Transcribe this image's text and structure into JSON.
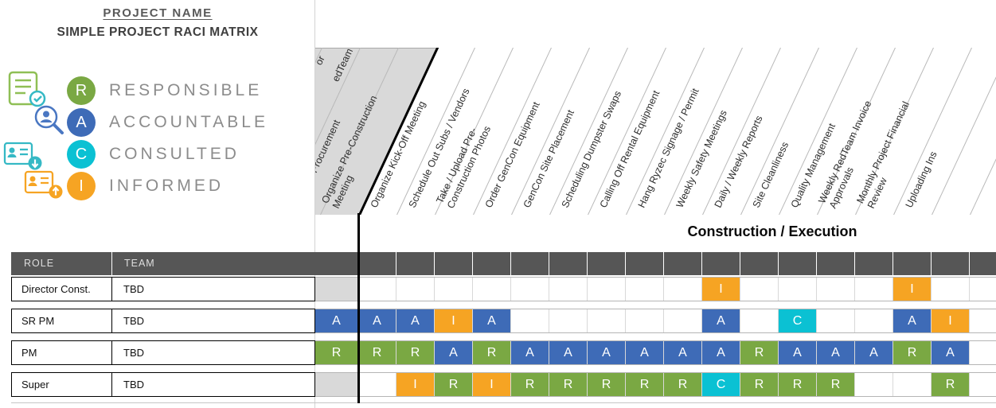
{
  "header": {
    "project_label": "PROJECT NAME",
    "title": "SIMPLE PROJECT RACI MATRIX"
  },
  "legend": {
    "items": [
      {
        "letter": "R",
        "label": "RESPONSIBLE",
        "color": "#7AA843"
      },
      {
        "letter": "A",
        "label": "ACCOUNTABLE",
        "color": "#3E6BB7"
      },
      {
        "letter": "C",
        "label": "CONSULTED",
        "color": "#0BC1D3"
      },
      {
        "letter": "I",
        "label": "INFORMED",
        "color": "#F6A423"
      }
    ]
  },
  "section": {
    "title": "Construction / Execution"
  },
  "matrix": {
    "role_header": "ROLE",
    "team_header": "TEAM",
    "left_header_fragments": [
      "or",
      "edTeam"
    ],
    "pre_section_columns": [
      "Manage Procurement",
      "Organize Pre-Construction\nMeeting"
    ],
    "columns": [
      "Organize Kick-Off Meeting",
      "Schedule Out Subs / Vendors",
      "Take / Upload Pre-\nConstruction Photos",
      "Order GenCon Equipment",
      "GenCon Site Placement",
      "Scheduling Dumpster Swaps",
      "Calling Off Rental Equipment",
      "Hang Ryzec Signage / Permit",
      "Weekly Safety Meetings",
      "Daily / Weekly Reports",
      "Site Cleanliness",
      "Quality Management",
      "Weekly RedTeam Invoice\nApprovals",
      "Monthly Project Financial\nReview",
      "Uploading Ins"
    ],
    "rows": [
      {
        "role": "Director Const.",
        "team": "TBD",
        "pre": "",
        "cells": [
          "",
          "",
          "",
          "",
          "",
          "",
          "",
          "",
          "",
          "I",
          "",
          "",
          "",
          "",
          "I",
          "",
          ""
        ]
      },
      {
        "role": "SR PM",
        "team": "TBD",
        "pre": "A",
        "cells": [
          "A",
          "A",
          "I",
          "A",
          "",
          "",
          "",
          "",
          "",
          "A",
          "",
          "C",
          "",
          "",
          "A",
          "I",
          ""
        ]
      },
      {
        "role": "PM",
        "team": "TBD",
        "pre": "R",
        "cells": [
          "R",
          "R",
          "A",
          "R",
          "A",
          "A",
          "A",
          "A",
          "A",
          "A",
          "R",
          "A",
          "A",
          "A",
          "R",
          "A",
          ""
        ]
      },
      {
        "role": "Super",
        "team": "TBD",
        "pre": "",
        "cells": [
          "",
          "I",
          "R",
          "I",
          "R",
          "R",
          "R",
          "R",
          "R",
          "C",
          "R",
          "R",
          "R",
          "",
          "",
          "R",
          ""
        ]
      }
    ]
  },
  "colors": {
    "header_bar": "#565656",
    "inactive_cell": "#D9D9D9",
    "section_divider": "#000000"
  }
}
